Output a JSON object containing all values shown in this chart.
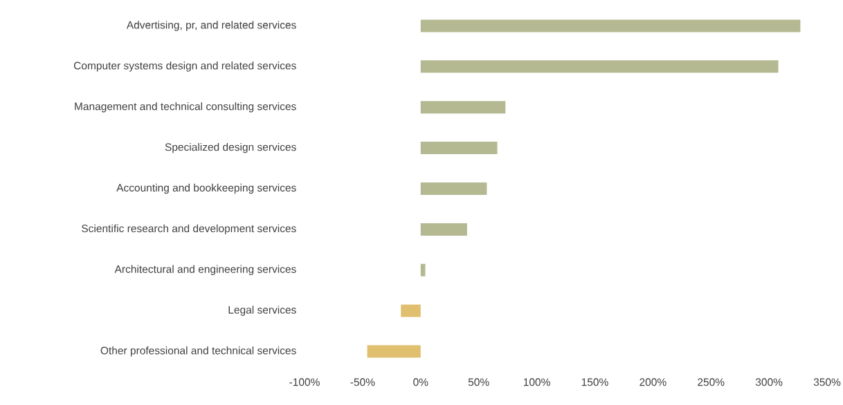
{
  "chart_data": {
    "type": "bar",
    "orientation": "horizontal",
    "categories": [
      "Advertising, pr, and related services",
      "Computer systems design and related services",
      "Management and technical consulting services",
      "Specialized design services",
      "Accounting and bookkeeping services",
      "Scientific research and development services",
      "Architectural and engineering services",
      "Legal services",
      "Other professional and technical services"
    ],
    "values": [
      327,
      308,
      73,
      66,
      57,
      40,
      4,
      -17,
      -46
    ],
    "colors": [
      "#b5b991",
      "#b5b991",
      "#b5b991",
      "#b5b991",
      "#b5b991",
      "#b5b991",
      "#b5b991",
      "#e0bf6e",
      "#e0bf6e"
    ],
    "xlim": [
      -100,
      350
    ],
    "xticks": [
      {
        "value": -100,
        "label": "-100%"
      },
      {
        "value": -50,
        "label": "-50%"
      },
      {
        "value": 0,
        "label": "0%"
      },
      {
        "value": 50,
        "label": "50%"
      },
      {
        "value": 100,
        "label": "100%"
      },
      {
        "value": 150,
        "label": "150%"
      },
      {
        "value": 200,
        "label": "200%"
      },
      {
        "value": 250,
        "label": "250%"
      },
      {
        "value": 300,
        "label": "300%"
      },
      {
        "value": 350,
        "label": "350%"
      }
    ],
    "grid": false
  }
}
